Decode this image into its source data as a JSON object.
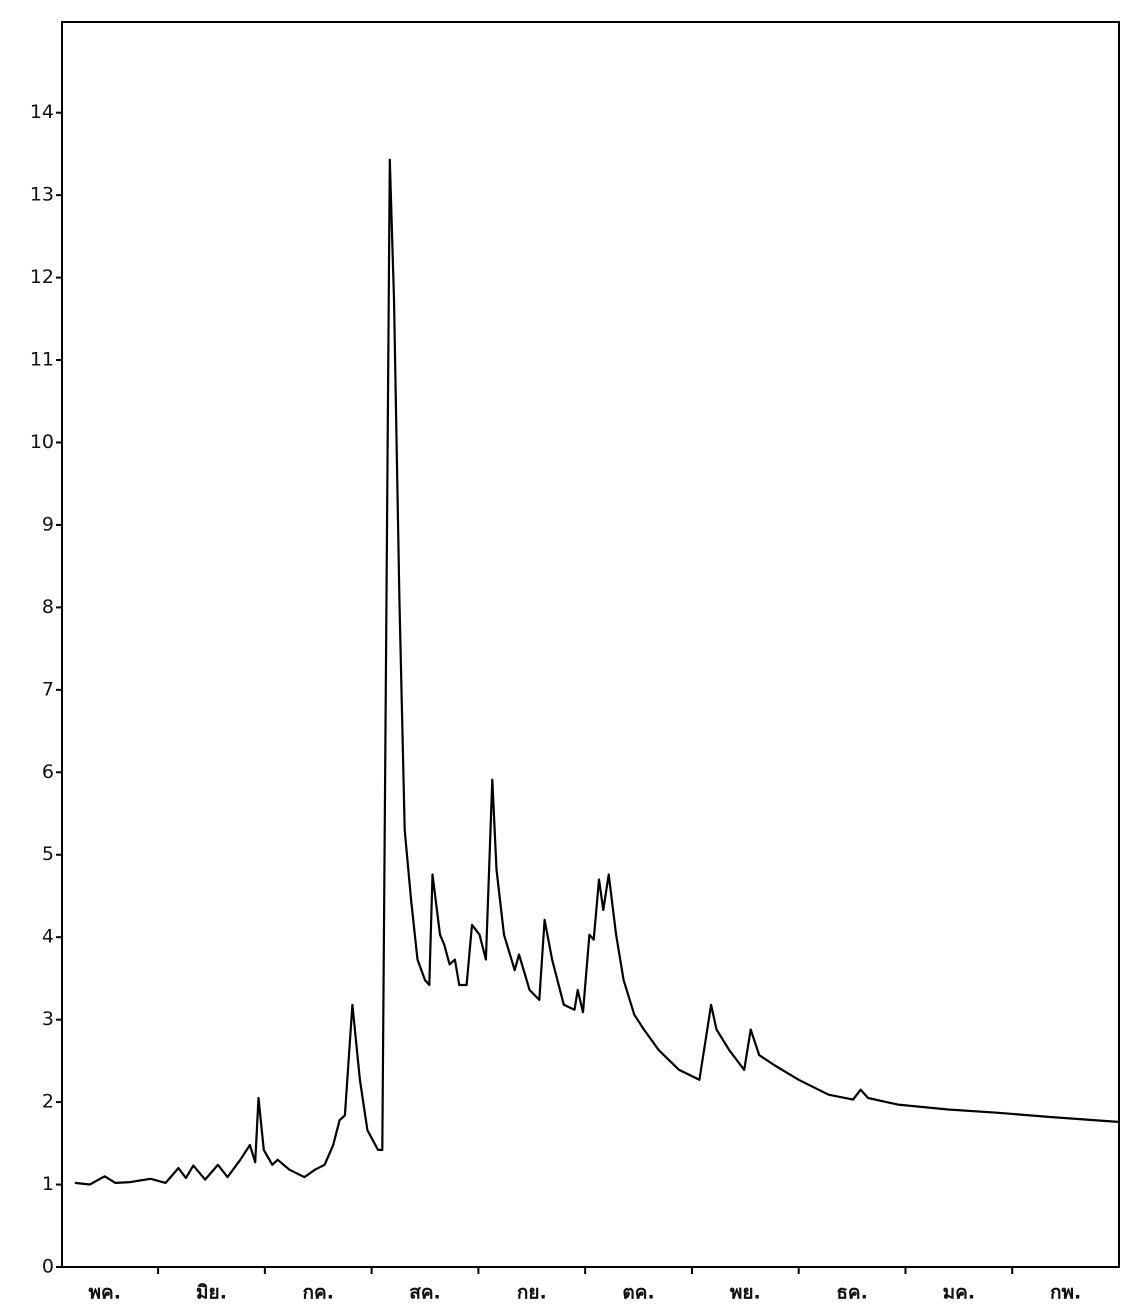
{
  "chart_data": {
    "type": "line",
    "categories": [
      "พค.",
      "มิย.",
      "กค.",
      "สค.",
      "กย.",
      "ตค.",
      "พย.",
      "ธค.",
      "มค.",
      "กพ."
    ],
    "x": [
      0.22,
      0.36,
      0.5,
      0.6,
      0.74,
      0.93,
      1.07,
      1.19,
      1.26,
      1.33,
      1.44,
      1.56,
      1.65,
      1.77,
      1.86,
      1.91,
      1.94,
      1.99,
      2.07,
      2.12,
      2.23,
      2.37,
      2.47,
      2.56,
      2.64,
      2.7,
      2.75,
      2.82,
      2.89,
      2.96,
      3.06,
      3.1,
      3.17,
      3.21,
      3.26,
      3.31,
      3.37,
      3.43,
      3.5,
      3.54,
      3.57,
      3.64,
      3.68,
      3.73,
      3.78,
      3.82,
      3.89,
      3.94,
      4.01,
      4.07,
      4.13,
      4.17,
      4.24,
      4.34,
      4.38,
      4.48,
      4.57,
      4.62,
      4.69,
      4.8,
      4.9,
      4.93,
      4.98,
      5.04,
      5.08,
      5.13,
      5.17,
      5.22,
      5.29,
      5.36,
      5.46,
      5.55,
      5.69,
      5.88,
      6.07,
      6.18,
      6.23,
      6.35,
      6.49,
      6.55,
      6.63,
      6.77,
      7.0,
      7.28,
      7.51,
      7.58,
      7.65,
      7.93,
      8.4,
      8.87,
      9.34,
      9.99
    ],
    "values": [
      1.02,
      1.0,
      1.1,
      1.02,
      1.03,
      1.07,
      1.02,
      1.2,
      1.08,
      1.23,
      1.06,
      1.24,
      1.09,
      1.3,
      1.48,
      1.27,
      2.05,
      1.42,
      1.24,
      1.3,
      1.18,
      1.09,
      1.18,
      1.24,
      1.48,
      1.78,
      1.84,
      3.18,
      2.27,
      1.66,
      1.42,
      1.42,
      13.43,
      11.74,
      8.1,
      5.3,
      4.45,
      3.73,
      3.48,
      3.42,
      4.76,
      4.03,
      3.91,
      3.67,
      3.73,
      3.42,
      3.42,
      4.15,
      4.03,
      3.73,
      5.91,
      4.82,
      4.03,
      3.6,
      3.79,
      3.36,
      3.24,
      4.21,
      3.73,
      3.18,
      3.12,
      3.36,
      3.09,
      4.03,
      3.97,
      4.7,
      4.33,
      4.76,
      4.03,
      3.48,
      3.06,
      2.88,
      2.63,
      2.39,
      2.27,
      3.18,
      2.88,
      2.63,
      2.39,
      2.88,
      2.57,
      2.45,
      2.27,
      2.09,
      2.03,
      2.15,
      2.05,
      1.97,
      1.91,
      1.87,
      1.82,
      1.76
    ],
    "color": "#000000",
    "xlim": [
      0.1,
      10
    ],
    "ylim": [
      0,
      15.1
    ],
    "yticks": [
      0,
      1,
      2,
      3,
      4,
      5,
      6,
      7,
      8,
      9,
      10,
      11,
      12,
      13,
      14
    ]
  }
}
